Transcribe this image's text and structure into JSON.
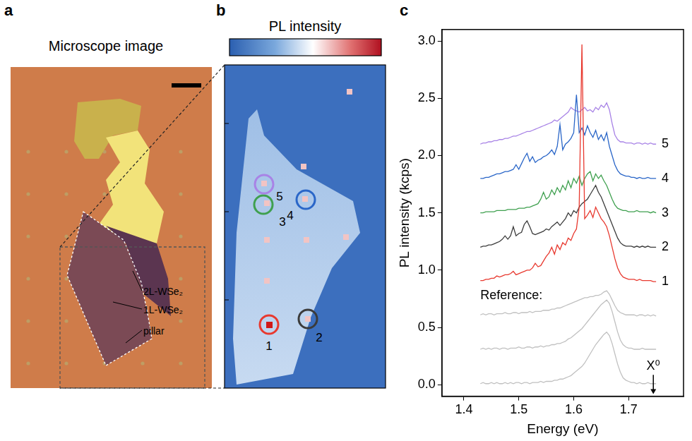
{
  "panels": {
    "a": {
      "letter": "a",
      "title": "Microscope image",
      "labels": [
        "2L-WSe₂",
        "1L-WSe₂",
        "pillar"
      ]
    },
    "b": {
      "letter": "b",
      "title": "PL intensity",
      "spots": [
        {
          "label": "1",
          "color": "#e8392f"
        },
        {
          "label": "2",
          "color": "#3b3b3b"
        },
        {
          "label": "3",
          "color": "#3fa04f"
        },
        {
          "label": "4",
          "color": "#2a66c8"
        },
        {
          "label": "5",
          "color": "#a883e6"
        }
      ]
    },
    "c": {
      "letter": "c"
    }
  },
  "chart_data": {
    "type": "line",
    "x_label": "Energy (eV)",
    "y_label": "PL intensity (kcps)",
    "x": [
      1.43,
      1.435,
      1.44,
      1.445,
      1.45,
      1.455,
      1.46,
      1.465,
      1.47,
      1.475,
      1.48,
      1.485,
      1.49,
      1.495,
      1.5,
      1.505,
      1.51,
      1.515,
      1.52,
      1.525,
      1.53,
      1.535,
      1.54,
      1.545,
      1.55,
      1.555,
      1.56,
      1.565,
      1.57,
      1.575,
      1.58,
      1.585,
      1.59,
      1.595,
      1.6,
      1.605,
      1.61,
      1.615,
      1.62,
      1.625,
      1.63,
      1.635,
      1.64,
      1.645,
      1.65,
      1.655,
      1.66,
      1.665,
      1.67,
      1.675,
      1.68,
      1.685,
      1.69,
      1.695,
      1.7,
      1.705,
      1.71,
      1.715,
      1.72,
      1.725,
      1.73,
      1.735,
      1.74,
      1.745,
      1.75
    ],
    "series": [
      {
        "color": "#c0c0c0",
        "values": [
          0.01,
          0.02,
          0.01,
          0.01,
          0.02,
          0.01,
          0.02,
          0.01,
          0.01,
          0.02,
          0.01,
          0.02,
          0.01,
          0.02,
          0.02,
          0.01,
          0.02,
          0.02,
          0.01,
          0.02,
          0.02,
          0.02,
          0.03,
          0.02,
          0.03,
          0.03,
          0.03,
          0.04,
          0.04,
          0.05,
          0.05,
          0.06,
          0.07,
          0.08,
          0.1,
          0.12,
          0.14,
          0.16,
          0.19,
          0.23,
          0.27,
          0.31,
          0.35,
          0.38,
          0.41,
          0.44,
          0.46,
          0.43,
          0.36,
          0.27,
          0.18,
          0.11,
          0.06,
          0.04,
          0.03,
          0.02,
          0.02,
          0.01,
          0.02,
          0.01,
          0.01,
          0.02,
          0.01,
          0.01,
          0.01
        ]
      },
      {
        "color": "#c0c0c0",
        "values": [
          0.31,
          0.32,
          0.31,
          0.32,
          0.31,
          0.32,
          0.32,
          0.31,
          0.32,
          0.32,
          0.31,
          0.32,
          0.32,
          0.32,
          0.33,
          0.32,
          0.32,
          0.33,
          0.33,
          0.32,
          0.33,
          0.33,
          0.34,
          0.33,
          0.34,
          0.34,
          0.35,
          0.35,
          0.36,
          0.36,
          0.37,
          0.38,
          0.4,
          0.41,
          0.43,
          0.45,
          0.47,
          0.49,
          0.52,
          0.55,
          0.58,
          0.61,
          0.64,
          0.67,
          0.7,
          0.72,
          0.74,
          0.71,
          0.64,
          0.55,
          0.46,
          0.39,
          0.35,
          0.33,
          0.32,
          0.32,
          0.31,
          0.31,
          0.31,
          0.32,
          0.31,
          0.31,
          0.31,
          0.31,
          0.31
        ]
      },
      {
        "color": "#c0c0c0",
        "values": [
          0.61,
          0.62,
          0.61,
          0.62,
          0.62,
          0.61,
          0.62,
          0.62,
          0.62,
          0.63,
          0.62,
          0.62,
          0.63,
          0.63,
          0.62,
          0.63,
          0.63,
          0.63,
          0.64,
          0.63,
          0.64,
          0.64,
          0.64,
          0.65,
          0.65,
          0.65,
          0.66,
          0.66,
          0.67,
          0.67,
          0.68,
          0.69,
          0.7,
          0.71,
          0.72,
          0.73,
          0.74,
          0.75,
          0.76,
          0.76,
          0.77,
          0.77,
          0.78,
          0.78,
          0.79,
          0.81,
          0.82,
          0.79,
          0.74,
          0.69,
          0.65,
          0.63,
          0.62,
          0.61,
          0.61,
          0.61,
          0.61,
          0.6,
          0.61,
          0.61,
          0.6,
          0.61,
          0.6,
          0.61,
          0.6
        ]
      },
      {
        "name": "1",
        "color": "#e8392f",
        "values": [
          0.91,
          0.91,
          0.92,
          0.92,
          0.93,
          0.93,
          0.95,
          0.94,
          0.95,
          0.96,
          0.96,
          0.97,
          0.99,
          0.96,
          0.97,
          0.98,
          0.99,
          1.0,
          1.0,
          1.02,
          1.06,
          1.03,
          1.04,
          1.08,
          1.12,
          1.15,
          1.2,
          1.14,
          1.22,
          1.18,
          1.24,
          1.22,
          1.28,
          1.26,
          1.32,
          1.36,
          1.55,
          2.97,
          1.45,
          1.48,
          1.52,
          1.46,
          1.55,
          1.5,
          1.45,
          1.42,
          1.38,
          1.3,
          1.2,
          1.1,
          1.02,
          0.97,
          0.94,
          0.93,
          0.92,
          0.92,
          0.92,
          0.91,
          0.92,
          0.91,
          0.91,
          0.91,
          0.91,
          0.9,
          0.9
        ]
      },
      {
        "name": "2",
        "color": "#3b3b3b",
        "values": [
          1.2,
          1.21,
          1.21,
          1.22,
          1.22,
          1.23,
          1.24,
          1.25,
          1.27,
          1.3,
          1.27,
          1.3,
          1.38,
          1.3,
          1.32,
          1.33,
          1.4,
          1.43,
          1.38,
          1.32,
          1.31,
          1.32,
          1.33,
          1.34,
          1.36,
          1.35,
          1.38,
          1.4,
          1.42,
          1.39,
          1.42,
          1.45,
          1.5,
          1.47,
          1.52,
          1.5,
          1.55,
          1.58,
          1.6,
          1.62,
          1.66,
          1.7,
          1.74,
          1.68,
          1.64,
          1.58,
          1.52,
          1.46,
          1.4,
          1.34,
          1.28,
          1.24,
          1.22,
          1.21,
          1.21,
          1.21,
          1.2,
          1.21,
          1.2,
          1.21,
          1.2,
          1.21,
          1.2,
          1.2,
          1.2
        ]
      },
      {
        "name": "3",
        "color": "#3fa04f",
        "values": [
          1.5,
          1.5,
          1.51,
          1.51,
          1.51,
          1.51,
          1.52,
          1.52,
          1.52,
          1.52,
          1.53,
          1.53,
          1.53,
          1.53,
          1.54,
          1.54,
          1.54,
          1.55,
          1.55,
          1.56,
          1.57,
          1.58,
          1.62,
          1.68,
          1.62,
          1.64,
          1.7,
          1.66,
          1.72,
          1.68,
          1.74,
          1.7,
          1.78,
          1.72,
          1.8,
          1.76,
          1.82,
          1.74,
          1.8,
          1.84,
          1.86,
          1.78,
          1.84,
          1.8,
          1.83,
          1.78,
          1.74,
          1.68,
          1.62,
          1.57,
          1.54,
          1.53,
          1.52,
          1.52,
          1.51,
          1.51,
          1.51,
          1.52,
          1.51,
          1.51,
          1.51,
          1.51,
          1.5,
          1.51,
          1.5
        ]
      },
      {
        "name": "4",
        "color": "#2a66c8",
        "values": [
          1.8,
          1.8,
          1.81,
          1.81,
          1.82,
          1.83,
          1.84,
          1.84,
          1.85,
          1.86,
          1.86,
          1.87,
          1.88,
          1.92,
          1.88,
          1.93,
          1.98,
          2.02,
          1.95,
          1.99,
          1.94,
          1.96,
          1.97,
          1.99,
          2.0,
          2.02,
          2.05,
          2.01,
          2.08,
          2.27,
          2.05,
          2.1,
          2.12,
          2.15,
          2.2,
          2.53,
          2.2,
          2.24,
          2.18,
          2.26,
          2.2,
          2.16,
          2.22,
          2.14,
          2.18,
          2.13,
          2.2,
          2.08,
          2.0,
          1.92,
          1.87,
          1.84,
          1.83,
          1.82,
          1.82,
          1.81,
          1.81,
          1.8,
          1.81,
          1.8,
          1.8,
          1.81,
          1.8,
          1.8,
          1.8
        ]
      },
      {
        "name": "5",
        "color": "#a883e6",
        "values": [
          2.1,
          2.11,
          2.11,
          2.12,
          2.12,
          2.13,
          2.13,
          2.14,
          2.14,
          2.15,
          2.15,
          2.16,
          2.17,
          2.17,
          2.18,
          2.19,
          2.2,
          2.21,
          2.21,
          2.22,
          2.23,
          2.24,
          2.25,
          2.26,
          2.27,
          2.28,
          2.29,
          2.31,
          2.3,
          2.32,
          2.34,
          2.36,
          2.38,
          2.42,
          2.4,
          2.39,
          2.38,
          2.4,
          2.42,
          2.39,
          2.4,
          2.38,
          2.42,
          2.4,
          2.44,
          2.42,
          2.46,
          2.4,
          2.28,
          2.18,
          2.14,
          2.12,
          2.12,
          2.11,
          2.11,
          2.11,
          2.1,
          2.11,
          2.11,
          2.1,
          2.11,
          2.1,
          2.11,
          2.1,
          2.1
        ]
      }
    ],
    "xlim": [
      1.36,
      1.8
    ],
    "xticks": [
      1.4,
      1.5,
      1.6,
      1.7
    ],
    "ylim": [
      -0.1,
      3.1
    ],
    "yticks": [
      {
        "value": 0,
        "label": "0.0"
      },
      0.5,
      {
        "value": 1,
        "label": "1.0"
      },
      1.5,
      {
        "value": 2,
        "label": "2.0"
      },
      2.5,
      {
        "value": 3,
        "label": "3.0"
      }
    ],
    "grid": false,
    "annotations": [
      {
        "text": "Reference:",
        "x": 1.43,
        "y": 0.78
      },
      {
        "text": "X⁰",
        "x": 1.745,
        "y": 0.16,
        "marker": "arrow"
      }
    ]
  }
}
